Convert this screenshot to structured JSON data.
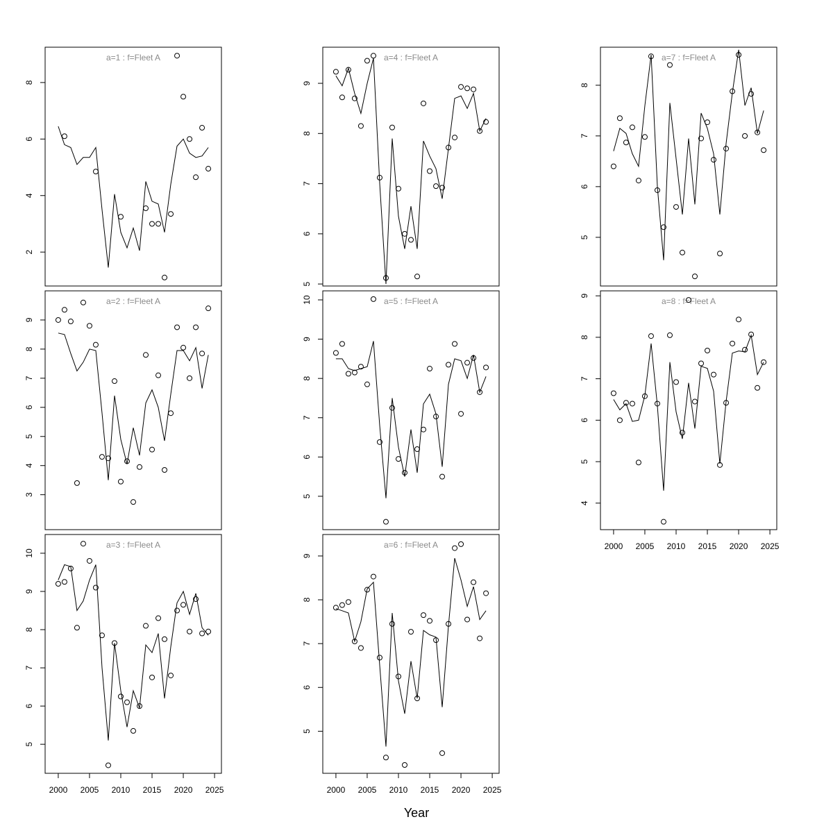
{
  "xlabel": "Year",
  "chart_data": [
    {
      "type": "line",
      "title": "a=1  :  f=Fleet A",
      "x": [
        2000,
        2001,
        2002,
        2003,
        2004,
        2005,
        2006,
        2007,
        2008,
        2009,
        2010,
        2011,
        2012,
        2013,
        2014,
        2015,
        2016,
        2017,
        2018,
        2019,
        2020,
        2021,
        2022,
        2023,
        2024
      ],
      "xlim": [
        1997.9,
        2026.1
      ],
      "ylim": [
        0.8,
        9.25
      ],
      "yticks": [
        2,
        4,
        6,
        8
      ],
      "series": [
        {
          "mark": "line",
          "color": "#000000",
          "values": [
            6.45,
            5.8,
            5.7,
            5.1,
            5.35,
            5.35,
            5.7,
            3.5,
            1.45,
            4.05,
            2.7,
            2.15,
            2.85,
            2.05,
            4.5,
            3.8,
            3.7,
            2.7,
            4.4,
            5.75,
            6.0,
            5.5,
            5.35,
            5.4,
            5.7
          ]
        },
        {
          "mark": "circle",
          "color": "#000000",
          "values": [
            null,
            6.1,
            null,
            null,
            null,
            null,
            4.85,
            null,
            null,
            null,
            3.25,
            null,
            null,
            null,
            3.55,
            3.0,
            3.0,
            1.1,
            3.35,
            8.95,
            7.5,
            6.0,
            4.65,
            6.4,
            4.95
          ]
        }
      ]
    },
    {
      "type": "line",
      "title": "a=2  :  f=Fleet A",
      "x": [
        2000,
        2001,
        2002,
        2003,
        2004,
        2005,
        2006,
        2007,
        2008,
        2009,
        2010,
        2011,
        2012,
        2013,
        2014,
        2015,
        2016,
        2017,
        2018,
        2019,
        2020,
        2021,
        2022,
        2023,
        2024
      ],
      "xlim": [
        1997.9,
        2026.1
      ],
      "ylim": [
        1.8,
        10.0
      ],
      "yticks": [
        3,
        4,
        5,
        6,
        7,
        8,
        9
      ],
      "series": [
        {
          "mark": "line",
          "color": "#000000",
          "values": [
            8.55,
            8.5,
            7.85,
            7.25,
            7.55,
            8.0,
            7.95,
            5.8,
            3.5,
            6.4,
            4.9,
            4.05,
            5.3,
            4.35,
            6.15,
            6.6,
            6.0,
            4.85,
            6.45,
            7.95,
            7.95,
            7.6,
            8.05,
            6.65,
            7.8
          ]
        },
        {
          "mark": "circle",
          "color": "#000000",
          "values": [
            9.0,
            9.35,
            8.95,
            3.4,
            9.6,
            8.8,
            8.15,
            4.3,
            4.25,
            6.9,
            3.45,
            4.15,
            2.75,
            3.95,
            7.8,
            4.55,
            7.1,
            3.85,
            5.8,
            8.75,
            8.05,
            7.0,
            8.75,
            7.85,
            9.4
          ]
        }
      ]
    },
    {
      "type": "line",
      "title": "a=3  :  f=Fleet A",
      "x": [
        2000,
        2001,
        2002,
        2003,
        2004,
        2005,
        2006,
        2007,
        2008,
        2009,
        2010,
        2011,
        2012,
        2013,
        2014,
        2015,
        2016,
        2017,
        2018,
        2019,
        2020,
        2021,
        2022,
        2023,
        2024
      ],
      "xlim": [
        1997.9,
        2026.1
      ],
      "xticks": [
        2000,
        2005,
        2010,
        2015,
        2020,
        2025
      ],
      "ylim": [
        4.24,
        10.49
      ],
      "yticks": [
        5,
        6,
        7,
        8,
        9,
        10
      ],
      "series": [
        {
          "mark": "line",
          "color": "#000000",
          "values": [
            9.3,
            9.7,
            9.65,
            8.5,
            8.75,
            9.3,
            9.7,
            7.0,
            5.1,
            7.65,
            6.4,
            5.45,
            6.4,
            5.95,
            7.6,
            7.4,
            7.9,
            6.2,
            7.55,
            8.7,
            9.0,
            8.4,
            8.95,
            8.05,
            7.85
          ]
        },
        {
          "mark": "circle",
          "color": "#000000",
          "values": [
            9.2,
            9.25,
            9.6,
            8.05,
            10.25,
            9.8,
            9.1,
            7.85,
            4.45,
            7.65,
            6.25,
            6.1,
            5.35,
            6.0,
            8.1,
            6.75,
            8.3,
            7.75,
            6.8,
            8.5,
            8.65,
            7.95,
            8.8,
            7.9,
            7.95
          ]
        }
      ]
    },
    {
      "type": "line",
      "title": "a=4  :  f=Fleet A",
      "x": [
        2000,
        2001,
        2002,
        2003,
        2004,
        2005,
        2006,
        2007,
        2008,
        2009,
        2010,
        2011,
        2012,
        2013,
        2014,
        2015,
        2016,
        2017,
        2018,
        2019,
        2020,
        2021,
        2022,
        2023,
        2024
      ],
      "xlim": [
        1997.9,
        2026.1
      ],
      "ylim": [
        4.96,
        9.72
      ],
      "yticks": [
        5,
        6,
        7,
        8,
        9
      ],
      "series": [
        {
          "mark": "line",
          "color": "#000000",
          "values": [
            9.15,
            8.95,
            9.3,
            8.8,
            8.4,
            9.0,
            9.5,
            7.0,
            5.0,
            7.9,
            6.35,
            5.7,
            6.55,
            5.7,
            7.85,
            7.55,
            7.3,
            6.7,
            7.7,
            8.7,
            8.75,
            8.5,
            8.8,
            8.05,
            8.3
          ]
        },
        {
          "mark": "circle",
          "color": "#000000",
          "values": [
            9.23,
            8.72,
            9.27,
            8.7,
            8.15,
            9.45,
            9.55,
            7.12,
            5.12,
            8.12,
            6.9,
            6.0,
            5.88,
            5.15,
            8.6,
            7.25,
            6.95,
            6.92,
            7.72,
            7.92,
            8.93,
            8.9,
            8.88,
            8.05,
            8.23
          ]
        }
      ]
    },
    {
      "type": "line",
      "title": "a=5  :  f=Fleet A",
      "x": [
        2000,
        2001,
        2002,
        2003,
        2004,
        2005,
        2006,
        2007,
        2008,
        2009,
        2010,
        2011,
        2012,
        2013,
        2014,
        2015,
        2016,
        2017,
        2018,
        2019,
        2020,
        2021,
        2022,
        2023,
        2024
      ],
      "xlim": [
        1997.9,
        2026.1
      ],
      "ylim": [
        4.15,
        10.23
      ],
      "yticks": [
        5,
        6,
        7,
        8,
        9,
        10
      ],
      "series": [
        {
          "mark": "line",
          "color": "#000000",
          "values": [
            8.5,
            8.5,
            8.25,
            8.2,
            8.25,
            8.3,
            8.95,
            6.8,
            4.95,
            7.5,
            6.25,
            5.5,
            6.7,
            5.6,
            7.35,
            7.6,
            7.1,
            5.75,
            7.85,
            8.5,
            8.45,
            8.0,
            8.6,
            7.65,
            8.05
          ]
        },
        {
          "mark": "circle",
          "color": "#000000",
          "values": [
            8.65,
            8.88,
            8.12,
            8.15,
            8.3,
            7.85,
            10.02,
            6.38,
            4.35,
            7.25,
            5.95,
            5.6,
            null,
            6.2,
            6.7,
            8.25,
            7.03,
            5.5,
            8.35,
            8.88,
            7.1,
            8.4,
            8.52,
            7.65,
            8.28
          ]
        }
      ]
    },
    {
      "type": "line",
      "title": "a=6  :  f=Fleet A",
      "x": [
        2000,
        2001,
        2002,
        2003,
        2004,
        2005,
        2006,
        2007,
        2008,
        2009,
        2010,
        2011,
        2012,
        2013,
        2014,
        2015,
        2016,
        2017,
        2018,
        2019,
        2020,
        2021,
        2022,
        2023,
        2024
      ],
      "xlim": [
        1997.9,
        2026.1
      ],
      "xticks": [
        2000,
        2005,
        2010,
        2015,
        2020,
        2025
      ],
      "ylim": [
        4.04,
        9.49
      ],
      "yticks": [
        5,
        6,
        7,
        8,
        9
      ],
      "series": [
        {
          "mark": "line",
          "color": "#000000",
          "values": [
            7.8,
            7.75,
            7.7,
            7.05,
            7.5,
            8.25,
            8.4,
            6.5,
            4.65,
            7.7,
            6.15,
            5.4,
            6.6,
            5.75,
            7.3,
            7.2,
            7.15,
            5.55,
            7.4,
            8.95,
            8.45,
            7.85,
            8.3,
            7.55,
            7.75
          ]
        },
        {
          "mark": "circle",
          "color": "#000000",
          "values": [
            7.82,
            7.88,
            7.95,
            7.05,
            6.9,
            8.23,
            8.53,
            6.68,
            4.4,
            7.45,
            6.25,
            4.23,
            7.27,
            5.75,
            7.65,
            7.52,
            7.08,
            4.5,
            7.45,
            9.18,
            9.27,
            7.55,
            8.4,
            7.12,
            8.15
          ]
        }
      ]
    },
    {
      "type": "line",
      "title": "a=7  :  f=Fleet A",
      "x": [
        2000,
        2001,
        2002,
        2003,
        2004,
        2005,
        2006,
        2007,
        2008,
        2009,
        2010,
        2011,
        2012,
        2013,
        2014,
        2015,
        2016,
        2017,
        2018,
        2019,
        2020,
        2021,
        2022,
        2023,
        2024
      ],
      "xlim": [
        1997.9,
        2026.1
      ],
      "ylim": [
        4.04,
        8.75
      ],
      "yticks": [
        5,
        6,
        7,
        8
      ],
      "series": [
        {
          "mark": "line",
          "color": "#000000",
          "values": [
            6.7,
            7.15,
            7.05,
            6.65,
            6.4,
            7.6,
            8.6,
            6.0,
            4.55,
            7.65,
            6.55,
            5.45,
            6.95,
            5.65,
            7.45,
            7.15,
            6.65,
            5.45,
            6.85,
            7.85,
            8.7,
            7.6,
            7.95,
            7.05,
            7.5
          ]
        },
        {
          "mark": "circle",
          "color": "#000000",
          "values": [
            6.4,
            7.35,
            6.87,
            7.17,
            6.12,
            6.98,
            8.57,
            5.93,
            5.2,
            8.4,
            5.6,
            4.7,
            null,
            4.23,
            6.95,
            7.27,
            6.53,
            4.68,
            6.75,
            7.88,
            8.6,
            7.0,
            7.83,
            7.07,
            6.72
          ]
        }
      ]
    },
    {
      "type": "line",
      "title": "a=8  :  f=Fleet A",
      "x": [
        2000,
        2001,
        2002,
        2003,
        2004,
        2005,
        2006,
        2007,
        2008,
        2009,
        2010,
        2011,
        2012,
        2013,
        2014,
        2015,
        2016,
        2017,
        2018,
        2019,
        2020,
        2021,
        2022,
        2023,
        2024
      ],
      "xlim": [
        1997.9,
        2026.1
      ],
      "xticks": [
        2000,
        2005,
        2010,
        2015,
        2020,
        2025
      ],
      "ylim": [
        3.36,
        9.12
      ],
      "yticks": [
        4,
        5,
        6,
        7,
        8,
        9
      ],
      "series": [
        {
          "mark": "line",
          "color": "#000000",
          "values": [
            6.5,
            6.25,
            6.4,
            5.97,
            6.0,
            6.6,
            7.85,
            6.35,
            4.3,
            7.4,
            6.2,
            5.55,
            6.9,
            5.8,
            7.3,
            7.25,
            6.7,
            4.95,
            6.45,
            7.62,
            7.67,
            7.65,
            8.05,
            7.1,
            7.4
          ]
        },
        {
          "mark": "circle",
          "color": "#000000",
          "values": [
            6.65,
            6.0,
            6.42,
            6.4,
            4.98,
            6.58,
            8.03,
            6.4,
            3.55,
            8.05,
            6.92,
            5.7,
            8.9,
            6.45,
            7.37,
            7.68,
            7.1,
            4.92,
            6.42,
            7.85,
            8.43,
            7.7,
            8.07,
            6.78,
            7.4
          ]
        }
      ]
    }
  ]
}
